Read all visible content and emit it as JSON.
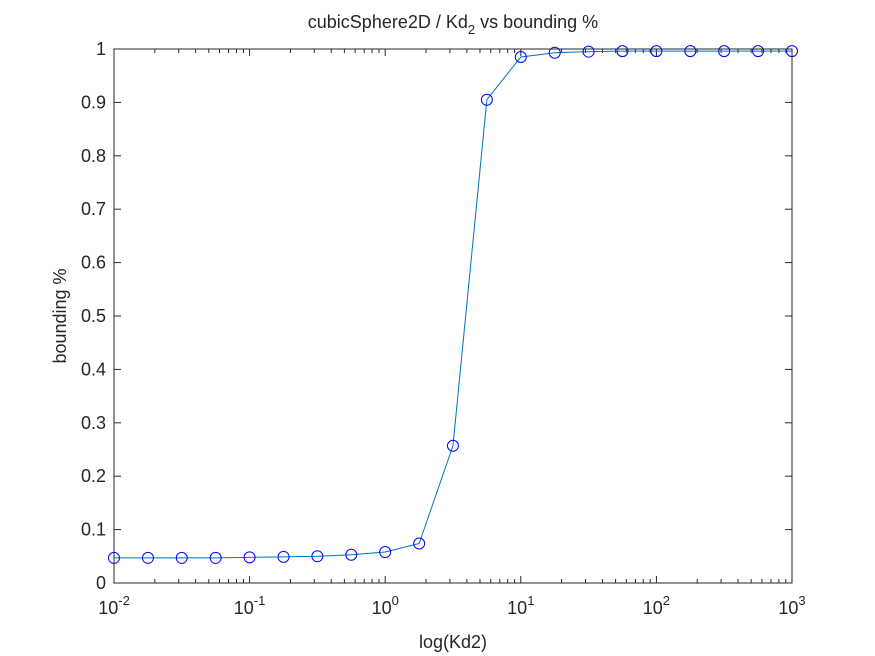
{
  "figure": {
    "background": "#ffffff"
  },
  "chart_data": {
    "type": "line",
    "title": {
      "prefix": "cubicSphere2D / Kd",
      "subscript": "2",
      "suffix": " vs bounding %"
    },
    "xlabel": "log(Kd2)",
    "ylabel": "bounding %",
    "xscale": "log",
    "xlim": [
      0.01,
      1000
    ],
    "ylim": [
      0,
      1
    ],
    "grid": false,
    "box": true,
    "marker": "circle",
    "colors": {
      "line": "#0072bd",
      "marker": "#0000ff",
      "axes": "#262626"
    },
    "x_ticks": [
      {
        "value": 0.01,
        "base": "10",
        "exp": "-2"
      },
      {
        "value": 0.1,
        "base": "10",
        "exp": "-1"
      },
      {
        "value": 1,
        "base": "10",
        "exp": "0"
      },
      {
        "value": 10,
        "base": "10",
        "exp": "1"
      },
      {
        "value": 100,
        "base": "10",
        "exp": "2"
      },
      {
        "value": 1000,
        "base": "10",
        "exp": "3"
      }
    ],
    "y_ticks": [
      {
        "value": 0,
        "label": "0"
      },
      {
        "value": 0.1,
        "label": "0.1"
      },
      {
        "value": 0.2,
        "label": "0.2"
      },
      {
        "value": 0.3,
        "label": "0.3"
      },
      {
        "value": 0.4,
        "label": "0.4"
      },
      {
        "value": 0.5,
        "label": "0.5"
      },
      {
        "value": 0.6,
        "label": "0.6"
      },
      {
        "value": 0.7,
        "label": "0.7"
      },
      {
        "value": 0.8,
        "label": "0.8"
      },
      {
        "value": 0.9,
        "label": "0.9"
      },
      {
        "value": 1,
        "label": "1"
      }
    ],
    "series": [
      {
        "x": [
          0.01,
          0.0178,
          0.0316,
          0.0562,
          0.1,
          0.178,
          0.316,
          0.562,
          1,
          1.78,
          3.16,
          5.62,
          10,
          17.8,
          31.6,
          56.2,
          100,
          178,
          316,
          562,
          1000
        ],
        "y": [
          0.047,
          0.047,
          0.047,
          0.047,
          0.048,
          0.049,
          0.05,
          0.053,
          0.058,
          0.074,
          0.257,
          0.905,
          0.985,
          0.993,
          0.995,
          0.996,
          0.996,
          0.996,
          0.996,
          0.996,
          0.996
        ]
      }
    ]
  }
}
